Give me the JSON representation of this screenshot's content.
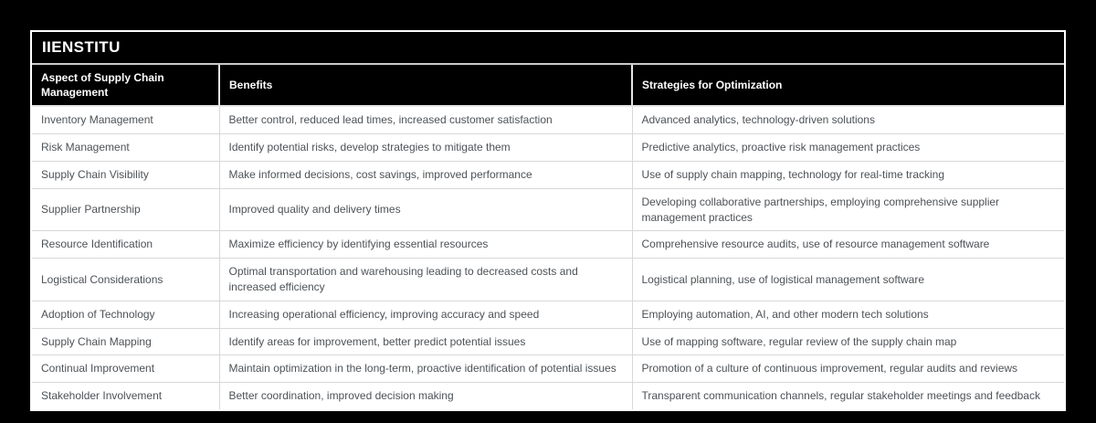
{
  "page": {
    "background": "#000000"
  },
  "brand": {
    "title": "IIENSTITU"
  },
  "colors": {
    "page_bg": "#000000",
    "outer_border": "#ffffff",
    "header_bg": "#000000",
    "header_text": "#ffffff",
    "body_bg": "#ffffff",
    "body_text": "#4d5257",
    "grid_line": "#d8d8d8"
  },
  "table": {
    "columns": [
      "Aspect of Supply Chain Management",
      "Benefits",
      "Strategies for Optimization"
    ],
    "rows": [
      {
        "aspect": "Inventory Management",
        "benefits": "Better control, reduced lead times, increased customer satisfaction",
        "strategies": "Advanced analytics, technology-driven solutions"
      },
      {
        "aspect": "Risk Management",
        "benefits": "Identify potential risks, develop strategies to mitigate them",
        "strategies": "Predictive analytics, proactive risk management practices"
      },
      {
        "aspect": "Supply Chain Visibility",
        "benefits": "Make informed decisions, cost savings, improved performance",
        "strategies": "Use of supply chain mapping, technology for real-time tracking"
      },
      {
        "aspect": "Supplier Partnership",
        "benefits": "Improved quality and delivery times",
        "strategies": "Developing collaborative partnerships, employing comprehensive supplier management practices"
      },
      {
        "aspect": "Resource Identification",
        "benefits": "Maximize efficiency by identifying essential resources",
        "strategies": "Comprehensive resource audits, use of resource management software"
      },
      {
        "aspect": "Logistical Considerations",
        "benefits": "Optimal transportation and warehousing leading to decreased costs and increased efficiency",
        "strategies": "Logistical planning, use of logistical management software"
      },
      {
        "aspect": "Adoption of Technology",
        "benefits": "Increasing operational efficiency, improving accuracy and speed",
        "strategies": "Employing automation, AI, and other modern tech solutions"
      },
      {
        "aspect": "Supply Chain Mapping",
        "benefits": "Identify areas for improvement, better predict potential issues",
        "strategies": "Use of mapping software, regular review of the supply chain map"
      },
      {
        "aspect": "Continual Improvement",
        "benefits": "Maintain optimization in the long-term, proactive identification of potential issues",
        "strategies": "Promotion of a culture of continuous improvement, regular audits and reviews"
      },
      {
        "aspect": "Stakeholder Involvement",
        "benefits": "Better coordination, improved decision making",
        "strategies": "Transparent communication channels, regular stakeholder meetings and feedback"
      }
    ]
  }
}
